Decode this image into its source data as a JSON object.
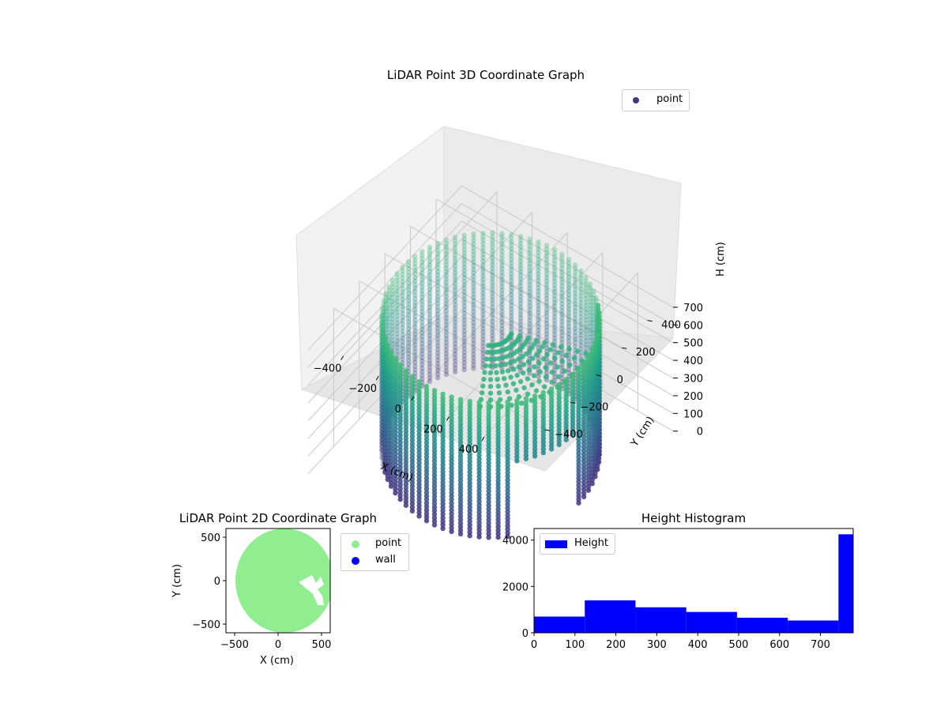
{
  "chart_data": [
    {
      "type": "scatter",
      "projection": "3d",
      "title": "LiDAR Point 3D Coordinate Graph",
      "xlabel": "X (cm)",
      "ylabel": "Y (cm)",
      "zlabel": "H (cm)",
      "xlim": [
        -600,
        600
      ],
      "ylim": [
        -600,
        600
      ],
      "zlim": [
        0,
        780
      ],
      "z_inverted": true,
      "xticks": [
        -400,
        -200,
        0,
        200,
        400
      ],
      "yticks": [
        -400,
        -200,
        0,
        200,
        400
      ],
      "zticks": [
        0,
        100,
        200,
        300,
        400,
        500,
        600,
        700
      ],
      "colormap": "viridis",
      "legend": {
        "entries": [
          "point"
        ],
        "position": "upper-right"
      },
      "series": [
        {
          "name": "point",
          "shape": "cylinder",
          "radius": 500,
          "h_min": 0,
          "h_max": 760,
          "gap_angle_deg": [
            -45,
            0
          ]
        }
      ],
      "colors": {
        "point_marker": "#46337e"
      }
    },
    {
      "type": "scatter",
      "title": "LiDAR Point 2D Coordinate Graph",
      "xlabel": "X (cm)",
      "ylabel": "Y (cm)",
      "xlim": [
        -600,
        600
      ],
      "ylim": [
        -600,
        600
      ],
      "xticks": [
        -500,
        0,
        500
      ],
      "yticks": [
        -500,
        0,
        500
      ],
      "legend": {
        "entries": [
          "point",
          "wall"
        ],
        "position": "outside-right"
      },
      "series": [
        {
          "name": "point",
          "color": "#90ee90",
          "shape": "disk",
          "radius": 600
        },
        {
          "name": "wall",
          "color": "#0000ff"
        }
      ]
    },
    {
      "type": "bar",
      "subtype": "histogram",
      "title": "Height Histogram",
      "xlim": [
        0,
        780
      ],
      "ylim": [
        0,
        4500
      ],
      "xticks": [
        0,
        100,
        200,
        300,
        400,
        500,
        600,
        700
      ],
      "yticks": [
        0,
        2000,
        4000
      ],
      "bin_edges": [
        0,
        124,
        248,
        372,
        496,
        620,
        744,
        780
      ],
      "values": [
        700,
        1400,
        1100,
        900,
        650,
        530,
        4250
      ],
      "legend": {
        "entries": [
          "Height"
        ],
        "position": "upper-left"
      },
      "series": [
        {
          "name": "Height",
          "color": "#0000ff"
        }
      ]
    }
  ]
}
